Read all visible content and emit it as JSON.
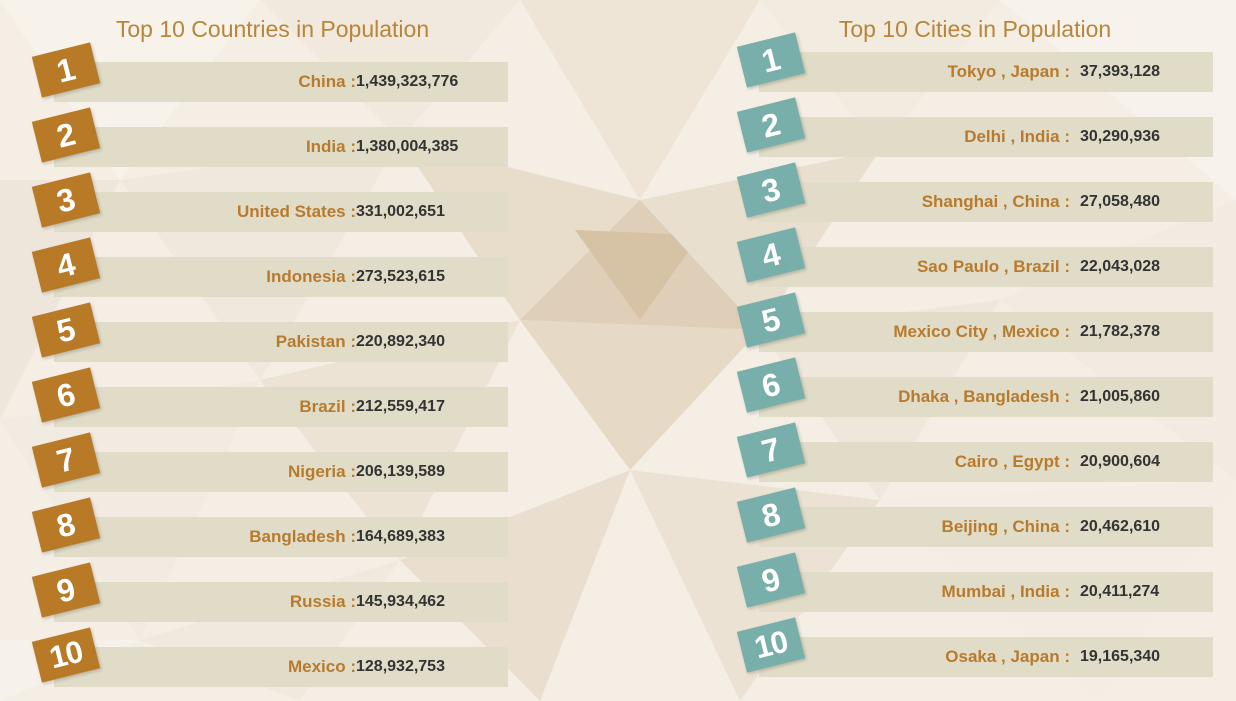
{
  "countries": {
    "title": "Top 10 Countries in Population",
    "items": [
      {
        "rank": "1",
        "name": "China :",
        "population": "1,439,323,776"
      },
      {
        "rank": "2",
        "name": "India :",
        "population": "1,380,004,385"
      },
      {
        "rank": "3",
        "name": "United States :",
        "population": "331,002,651"
      },
      {
        "rank": "4",
        "name": "Indonesia :",
        "population": "273,523,615"
      },
      {
        "rank": "5",
        "name": "Pakistan :",
        "population": "220,892,340"
      },
      {
        "rank": "6",
        "name": "Brazil :",
        "population": "212,559,417"
      },
      {
        "rank": "7",
        "name": "Nigeria :",
        "population": "206,139,589"
      },
      {
        "rank": "8",
        "name": "Bangladesh :",
        "population": "164,689,383"
      },
      {
        "rank": "9",
        "name": "Russia :",
        "population": "145,934,462"
      },
      {
        "rank": "10",
        "name": "Mexico :",
        "population": "128,932,753"
      }
    ]
  },
  "cities": {
    "title": "Top 10 Cities in Population",
    "items": [
      {
        "rank": "1",
        "name": "Tokyo , Japan :",
        "population": "37,393,128"
      },
      {
        "rank": "2",
        "name": "Delhi , India :",
        "population": "30,290,936"
      },
      {
        "rank": "3",
        "name": "Shanghai , China :",
        "population": "27,058,480"
      },
      {
        "rank": "4",
        "name": "Sao Paulo , Brazil :",
        "population": "22,043,028"
      },
      {
        "rank": "5",
        "name": "Mexico City , Mexico :",
        "population": "21,782,378"
      },
      {
        "rank": "6",
        "name": "Dhaka , Bangladesh :",
        "population": "21,005,860"
      },
      {
        "rank": "7",
        "name": "Cairo , Egypt :",
        "population": "20,900,604"
      },
      {
        "rank": "8",
        "name": "Beijing , China :",
        "population": "20,462,610"
      },
      {
        "rank": "9",
        "name": "Mumbai , India :",
        "population": "20,411,274"
      },
      {
        "rank": "10",
        "name": "Osaka , Japan :",
        "population": "19,165,340"
      }
    ]
  },
  "colors": {
    "country_badge": "#b87a27",
    "city_badge": "#79afaa",
    "label_text": "#b87b2e",
    "row_bar": "#e0dcc7",
    "title_text": "#b8853a"
  }
}
